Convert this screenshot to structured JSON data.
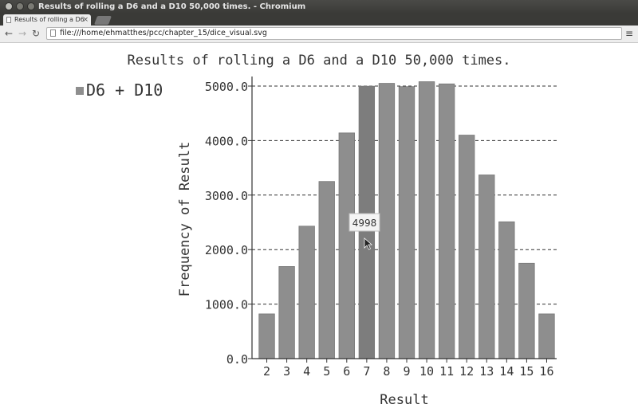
{
  "window": {
    "title": "Results of rolling a D6 and a D10 50,000 times. - Chromium"
  },
  "tabs": [
    {
      "label": "Results of rolling a D6"
    }
  ],
  "toolbar": {
    "back_icon": "back-arrow-icon",
    "forward_icon": "forward-arrow-icon",
    "reload_icon": "reload-icon",
    "url": "file:///home/ehmatthes/pcc/chapter_15/dice_visual.svg",
    "menu_icon": "menu-icon"
  },
  "tooltip": {
    "value": "4998"
  },
  "colors": {
    "bar": "#8e8e8e",
    "bar_highlight": "#7d7d7d",
    "axis": "#333333"
  },
  "chart_data": {
    "type": "bar",
    "title": "Results of rolling a D6 and a D10 50,000 times.",
    "xlabel": "Result",
    "ylabel": "Frequency of Result",
    "legend": "top-left",
    "grid": true,
    "ylim": [
      0,
      5000
    ],
    "yticks": [
      "0.0",
      "1000.0",
      "2000.0",
      "3000.0",
      "4000.0",
      "5000.0"
    ],
    "categories": [
      "2",
      "3",
      "4",
      "5",
      "6",
      "7",
      "8",
      "9",
      "10",
      "11",
      "12",
      "13",
      "14",
      "15",
      "16"
    ],
    "series": [
      {
        "name": "D6 + D10",
        "values": [
          820,
          1690,
          2430,
          3250,
          4140,
          4998,
          5050,
          4990,
          5080,
          5040,
          4100,
          3370,
          2510,
          1750,
          820
        ]
      }
    ]
  }
}
